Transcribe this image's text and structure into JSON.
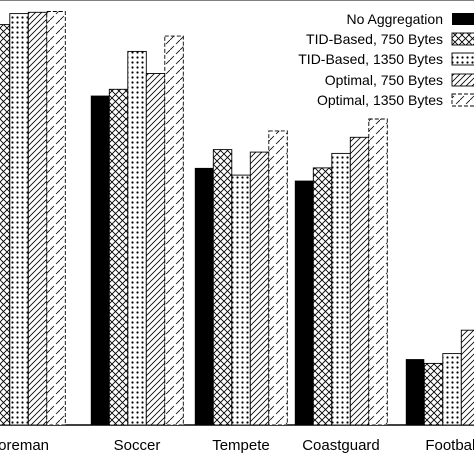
{
  "chart_data": {
    "type": "bar",
    "title": "",
    "xlabel": "",
    "ylabel": "",
    "ylim": [
      0,
      100
    ],
    "grid": false,
    "legend_position": "top-right",
    "categories": [
      "Foreman",
      "Soccer",
      "Tempete",
      "Coastguard",
      "Football"
    ],
    "series": [
      {
        "name": "No Aggregation",
        "values": [
          null,
          77.5,
          60.5,
          57.5,
          15.5
        ]
      },
      {
        "name": "TID-Based, 750 Bytes",
        "values": [
          94.2,
          79.0,
          64.8,
          60.5,
          14.5
        ]
      },
      {
        "name": "TID-Based, 1350 Bytes",
        "values": [
          96.8,
          87.9,
          58.8,
          63.9,
          16.8
        ]
      },
      {
        "name": "Optimal, 750 Bytes",
        "values": [
          97.1,
          82.7,
          64.2,
          67.7,
          22.3
        ]
      },
      {
        "name": "Optimal, 1350 Bytes",
        "values": [
          97.3,
          91.5,
          69.2,
          72.0,
          27.3
        ]
      }
    ],
    "series_styles": [
      {
        "pattern": "solid",
        "color": "#000000"
      },
      {
        "pattern": "crosshatch",
        "color": "#000000"
      },
      {
        "pattern": "dots",
        "color": "#000000"
      },
      {
        "pattern": "forward-diagonal",
        "color": "#000000"
      },
      {
        "pattern": "dashed-diagonal",
        "color": "#000000"
      }
    ]
  }
}
